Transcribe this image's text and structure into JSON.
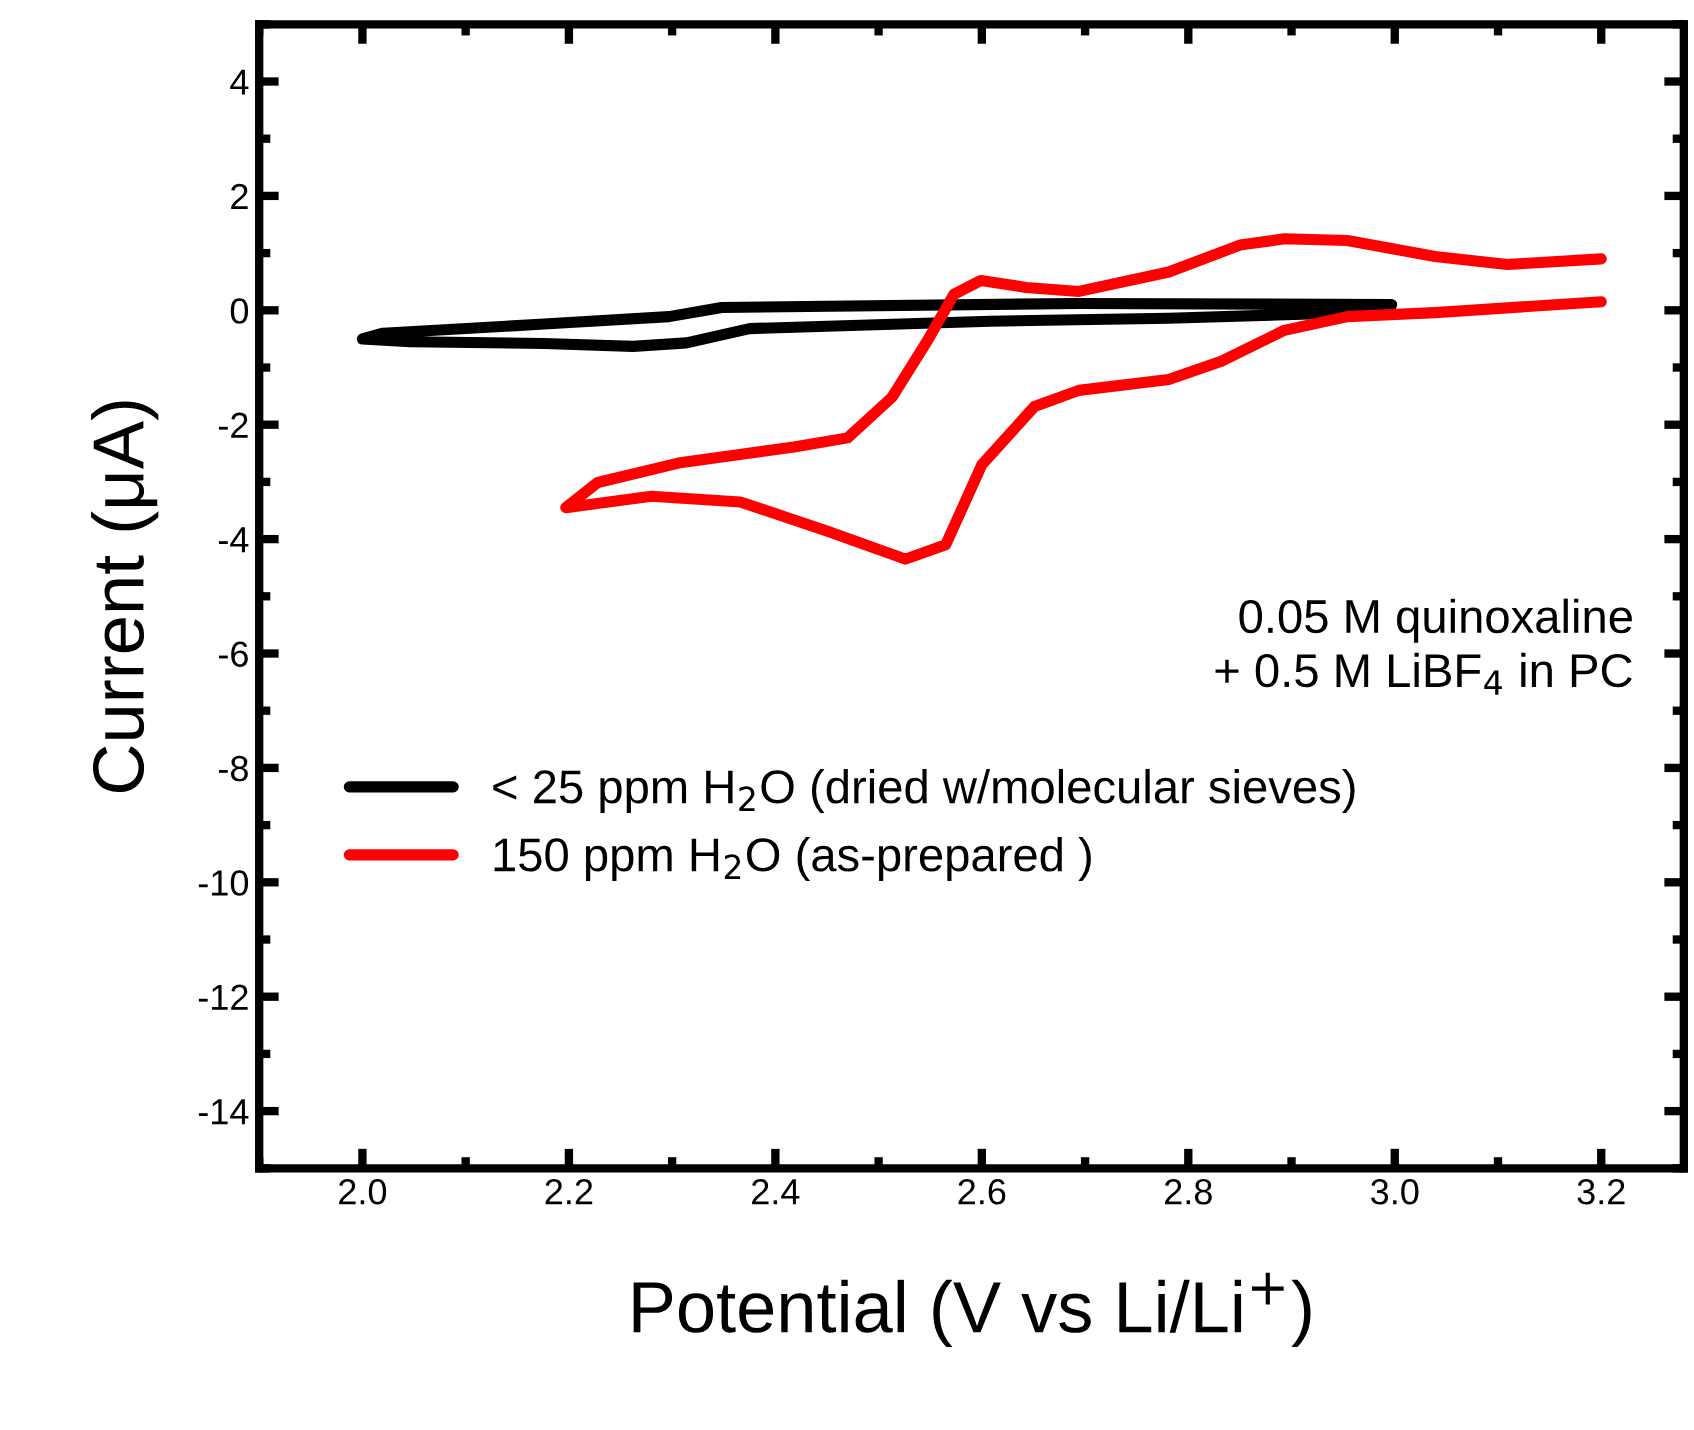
{
  "chart_data": {
    "type": "line",
    "xlabel": "Potential (V vs Li/Li$^{+}$)",
    "ylabel": "Current (μA)",
    "xlim": [
      1.9,
      3.28
    ],
    "xticks": [
      {
        "value": 2,
        "label": "2.0"
      },
      2.2,
      2.4,
      2.6,
      2.8,
      {
        "value": 3,
        "label": "3.0"
      },
      3.2
    ],
    "ylim": [
      -15,
      5
    ],
    "yticks": [
      -14,
      -12,
      -10,
      -8,
      -6,
      -4,
      -2,
      0,
      2,
      4
    ],
    "legend": "center left",
    "grid": false,
    "marker": "none",
    "line_style": "solid",
    "annotations": [
      "0.05 M quinoxaline\n+ 0.5 M LiBF$_{4}$ in PC"
    ],
    "series": [
      {
        "name": "< 25 ppm H$_{2}$O (dried w/molecular sieves)",
        "color": "#000000",
        "x": [
          2.997,
          2.694,
          2.348,
          2.297,
          2.176,
          2.02,
          2.0,
          2.046,
          2.176,
          2.262,
          2.314,
          2.375,
          2.608,
          2.781,
          2.997
        ],
        "values": [
          0.1,
          0.12,
          0.05,
          -0.11,
          -0.24,
          -0.4,
          -0.5,
          -0.55,
          -0.58,
          -0.63,
          -0.57,
          -0.32,
          -0.19,
          -0.14,
          -0.02
        ]
      },
      {
        "name": "150 ppm H$_{2}$O (as-prepared )",
        "color": "#ff0000",
        "x": [
          3.2,
          3.109,
          3.039,
          2.954,
          2.893,
          2.85,
          2.781,
          2.694,
          2.643,
          2.599,
          2.573,
          2.548,
          2.513,
          2.47,
          2.418,
          2.306,
          2.228,
          2.197,
          2.28,
          2.366,
          2.452,
          2.526,
          2.565,
          2.6,
          2.651,
          2.694,
          2.781,
          2.832,
          2.893,
          2.954,
          3.039,
          3.2
        ],
        "values": [
          0.9,
          0.8,
          0.94,
          1.22,
          1.25,
          1.14,
          0.67,
          0.33,
          0.4,
          0.52,
          0.28,
          -0.51,
          -1.52,
          -2.23,
          -2.39,
          -2.67,
          -3.01,
          -3.45,
          -3.25,
          -3.35,
          -3.87,
          -4.35,
          -4.1,
          -2.7,
          -1.68,
          -1.4,
          -1.21,
          -0.89,
          -0.35,
          -0.11,
          -0.04,
          0.15
        ]
      }
    ]
  }
}
